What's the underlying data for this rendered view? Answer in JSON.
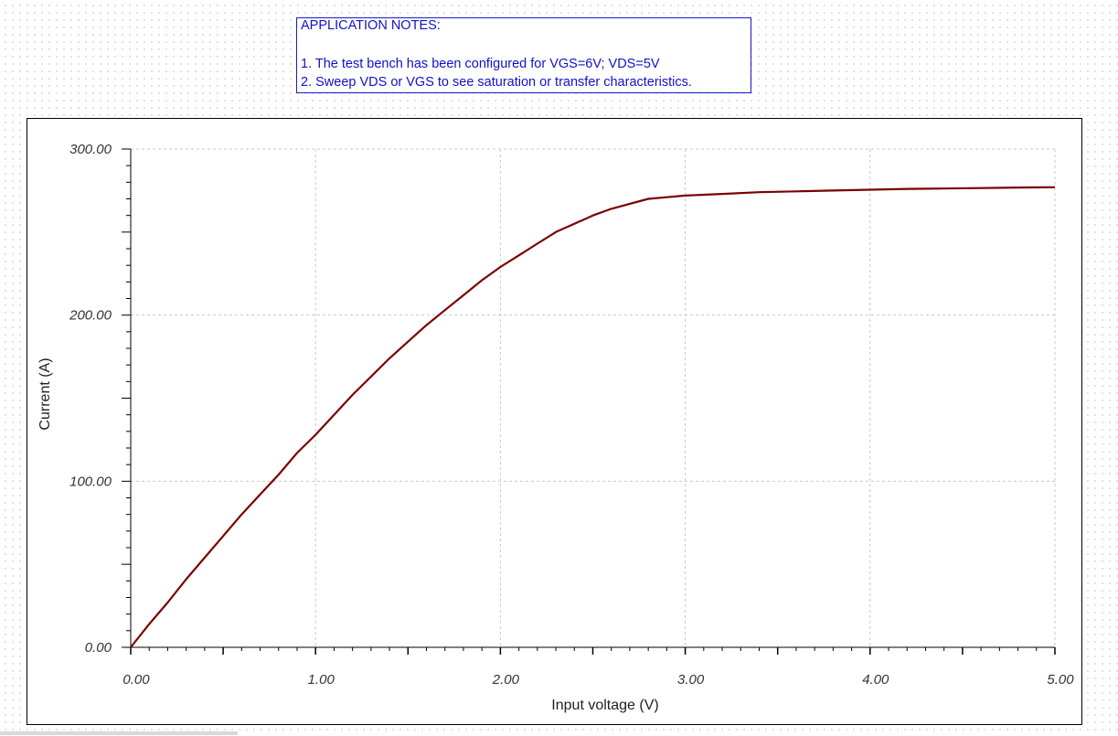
{
  "application_notes": {
    "heading": "APPLICATION NOTES:",
    "lines": [
      "1. The test bench has been configured for VGS=6V; VDS=5V",
      "2. Sweep VDS or VGS to see saturation or transfer characteristics."
    ]
  },
  "chart_data": {
    "type": "line",
    "title": "",
    "xlabel": "Input voltage (V)",
    "ylabel": "Current (A)",
    "xlim": [
      0,
      5
    ],
    "ylim": [
      0,
      300
    ],
    "x_ticks": [
      "0.00",
      "1.00",
      "2.00",
      "3.00",
      "4.00",
      "5.00"
    ],
    "y_ticks": [
      "0.00",
      "100.00",
      "200.00",
      "300.00"
    ],
    "grid": true,
    "legend": "none",
    "series": [
      {
        "color": "#7a0000",
        "x": [
          0.0,
          0.1,
          0.2,
          0.3,
          0.4,
          0.5,
          0.6,
          0.7,
          0.8,
          0.9,
          1.0,
          1.1,
          1.2,
          1.3,
          1.4,
          1.5,
          1.6,
          1.7,
          1.8,
          1.9,
          2.0,
          2.1,
          2.2,
          2.3,
          2.4,
          2.5,
          2.6,
          2.7,
          2.8,
          2.9,
          3.0,
          3.2,
          3.4,
          3.6,
          3.8,
          4.0,
          4.2,
          4.4,
          4.6,
          4.8,
          5.0
        ],
        "y": [
          0,
          14,
          27,
          41,
          54,
          67,
          80,
          92,
          104,
          117,
          128,
          140,
          152,
          163,
          174,
          184,
          194,
          203,
          212,
          221,
          229,
          236,
          243,
          250,
          255,
          260,
          264,
          267,
          270,
          271,
          272,
          273,
          274,
          274.5,
          275,
          275.5,
          276,
          276.2,
          276.5,
          276.8,
          277
        ]
      }
    ]
  }
}
